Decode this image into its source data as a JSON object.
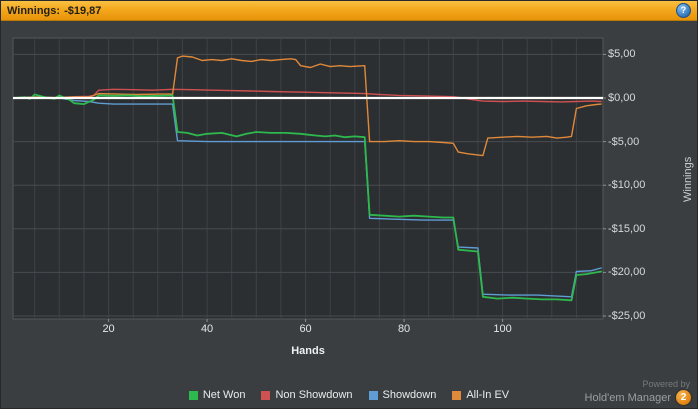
{
  "titlebar": {
    "label": "Winnings:",
    "value": "-$19,87",
    "help_icon": "?"
  },
  "chart_data": {
    "type": "line",
    "xlabel": "Hands",
    "ylabel": "Winnings",
    "xlim": [
      1,
      120
    ],
    "ylim": [
      -26.5,
      6.9
    ],
    "grid": true,
    "legend_position": "bottom",
    "zero_line_color": "#ffffff",
    "x_ticks": [
      20,
      40,
      60,
      80,
      100
    ],
    "y_ticks": [
      {
        "label": "$5,00",
        "value": 5
      },
      {
        "label": "$0,00",
        "value": 0
      },
      {
        "label": "-$5,00",
        "value": -5
      },
      {
        "label": "-$10,00",
        "value": -10
      },
      {
        "label": "-$15,00",
        "value": -15
      },
      {
        "label": "-$20,00",
        "value": -20
      },
      {
        "label": "-$25,00",
        "value": -25
      }
    ],
    "series": [
      {
        "name": "Net Won",
        "color": "#2eb94e",
        "width": 1.8,
        "points": [
          [
            1,
            0
          ],
          [
            3,
            0.1
          ],
          [
            4,
            -0.1
          ],
          [
            5,
            0.4
          ],
          [
            7,
            0.1
          ],
          [
            9,
            -0.1
          ],
          [
            10,
            0.3
          ],
          [
            12,
            -0.2
          ],
          [
            13,
            -0.6
          ],
          [
            15,
            -0.7
          ],
          [
            17,
            -0.2
          ],
          [
            18,
            0.3
          ],
          [
            21,
            0.25
          ],
          [
            24,
            0.3
          ],
          [
            27,
            0.2
          ],
          [
            30,
            0.25
          ],
          [
            33,
            0.3
          ],
          [
            34,
            -3.9
          ],
          [
            36,
            -4.0
          ],
          [
            38,
            -4.3
          ],
          [
            40,
            -4.1
          ],
          [
            43,
            -4.0
          ],
          [
            46,
            -4.4
          ],
          [
            48,
            -4.1
          ],
          [
            50,
            -3.9
          ],
          [
            53,
            -4.0
          ],
          [
            56,
            -4.0
          ],
          [
            59,
            -4.1
          ],
          [
            62,
            -4.3
          ],
          [
            64,
            -4.4
          ],
          [
            66,
            -4.3
          ],
          [
            68,
            -4.5
          ],
          [
            70,
            -4.4
          ],
          [
            72,
            -4.5
          ],
          [
            73,
            -13.4
          ],
          [
            76,
            -13.5
          ],
          [
            79,
            -13.6
          ],
          [
            82,
            -13.5
          ],
          [
            85,
            -13.6
          ],
          [
            88,
            -13.7
          ],
          [
            90,
            -13.7
          ],
          [
            91,
            -17.4
          ],
          [
            93,
            -17.5
          ],
          [
            95,
            -17.6
          ],
          [
            96,
            -22.8
          ],
          [
            99,
            -23.0
          ],
          [
            102,
            -22.9
          ],
          [
            105,
            -23.0
          ],
          [
            108,
            -23.1
          ],
          [
            111,
            -23.1
          ],
          [
            114,
            -23.2
          ],
          [
            115,
            -20.3
          ],
          [
            117,
            -20.2
          ],
          [
            120,
            -19.9
          ]
        ]
      },
      {
        "name": "Non Showdown",
        "color": "#d05151",
        "width": 1.4,
        "points": [
          [
            1,
            0
          ],
          [
            5,
            0.1
          ],
          [
            9,
            0
          ],
          [
            13,
            0.15
          ],
          [
            16,
            0.2
          ],
          [
            17,
            0.3
          ],
          [
            18,
            0.9
          ],
          [
            21,
            1.0
          ],
          [
            25,
            0.95
          ],
          [
            29,
            0.9
          ],
          [
            33,
            1.0
          ],
          [
            37,
            0.95
          ],
          [
            41,
            0.9
          ],
          [
            45,
            0.85
          ],
          [
            49,
            0.8
          ],
          [
            53,
            0.75
          ],
          [
            57,
            0.7
          ],
          [
            61,
            0.65
          ],
          [
            65,
            0.6
          ],
          [
            69,
            0.55
          ],
          [
            72,
            0.5
          ],
          [
            75,
            0.4
          ],
          [
            79,
            0.3
          ],
          [
            83,
            0.25
          ],
          [
            87,
            0.2
          ],
          [
            90,
            0.15
          ],
          [
            92,
            0
          ],
          [
            94,
            -0.2
          ],
          [
            96,
            -0.35
          ],
          [
            100,
            -0.4
          ],
          [
            104,
            -0.35
          ],
          [
            108,
            -0.4
          ],
          [
            112,
            -0.45
          ],
          [
            115,
            -0.4
          ],
          [
            118,
            -0.35
          ],
          [
            120,
            -0.4
          ]
        ]
      },
      {
        "name": "Showdown",
        "color": "#5f9dd4",
        "width": 1.4,
        "points": [
          [
            1,
            0
          ],
          [
            5,
            0.1
          ],
          [
            10,
            0
          ],
          [
            13,
            -0.3
          ],
          [
            16,
            -0.4
          ],
          [
            18,
            -0.6
          ],
          [
            21,
            -0.7
          ],
          [
            26,
            -0.7
          ],
          [
            30,
            -0.7
          ],
          [
            33,
            -0.7
          ],
          [
            34,
            -4.9
          ],
          [
            40,
            -5
          ],
          [
            48,
            -5
          ],
          [
            56,
            -5
          ],
          [
            64,
            -5
          ],
          [
            72,
            -5
          ],
          [
            73,
            -13.8
          ],
          [
            78,
            -13.9
          ],
          [
            84,
            -14
          ],
          [
            90,
            -14
          ],
          [
            91,
            -17.1
          ],
          [
            95,
            -17.2
          ],
          [
            96,
            -22.5
          ],
          [
            101,
            -22.6
          ],
          [
            107,
            -22.6
          ],
          [
            114,
            -22.8
          ],
          [
            115,
            -19.9
          ],
          [
            118,
            -19.8
          ],
          [
            120,
            -19.5
          ]
        ]
      },
      {
        "name": "All-In EV",
        "color": "#e0893a",
        "width": 1.4,
        "points": [
          [
            1,
            0
          ],
          [
            5,
            0.1
          ],
          [
            9,
            0.05
          ],
          [
            13,
            0.1
          ],
          [
            16,
            0.1
          ],
          [
            18,
            0.5
          ],
          [
            22,
            0.45
          ],
          [
            26,
            0.4
          ],
          [
            30,
            0.45
          ],
          [
            33,
            0.45
          ],
          [
            34,
            4.6
          ],
          [
            35,
            4.8
          ],
          [
            37,
            4.7
          ],
          [
            39,
            4.3
          ],
          [
            41,
            4.4
          ],
          [
            43,
            4.3
          ],
          [
            45,
            4.5
          ],
          [
            47,
            4.3
          ],
          [
            49,
            4.2
          ],
          [
            51,
            4.4
          ],
          [
            53,
            4.3
          ],
          [
            55,
            4.4
          ],
          [
            57,
            4.5
          ],
          [
            58,
            4.4
          ],
          [
            59,
            3.7
          ],
          [
            61,
            3.5
          ],
          [
            63,
            3.9
          ],
          [
            65,
            3.6
          ],
          [
            67,
            3.7
          ],
          [
            69,
            3.6
          ],
          [
            72,
            3.7
          ],
          [
            73,
            -5
          ],
          [
            76,
            -5
          ],
          [
            79,
            -4.9
          ],
          [
            82,
            -5
          ],
          [
            85,
            -5
          ],
          [
            88,
            -5.1
          ],
          [
            90,
            -5.2
          ],
          [
            91,
            -6.2
          ],
          [
            93,
            -6.4
          ],
          [
            96,
            -6.6
          ],
          [
            97,
            -4.6
          ],
          [
            100,
            -4.5
          ],
          [
            103,
            -4.4
          ],
          [
            106,
            -4.5
          ],
          [
            109,
            -4.4
          ],
          [
            111,
            -4.6
          ],
          [
            113,
            -4.5
          ],
          [
            114,
            -4.4
          ],
          [
            115,
            -1.2
          ],
          [
            117,
            -0.9
          ],
          [
            119,
            -0.75
          ],
          [
            120,
            -0.7
          ]
        ]
      }
    ]
  },
  "legend": {
    "items": [
      {
        "label": "Net Won",
        "color": "#2eb94e"
      },
      {
        "label": "Non Showdown",
        "color": "#d05151"
      },
      {
        "label": "Showdown",
        "color": "#5f9dd4"
      },
      {
        "label": "All-In EV",
        "color": "#e0893a"
      }
    ]
  },
  "footer": {
    "powered_by": "Powered by",
    "brand": "Hold'em Manager",
    "badge": "2"
  }
}
